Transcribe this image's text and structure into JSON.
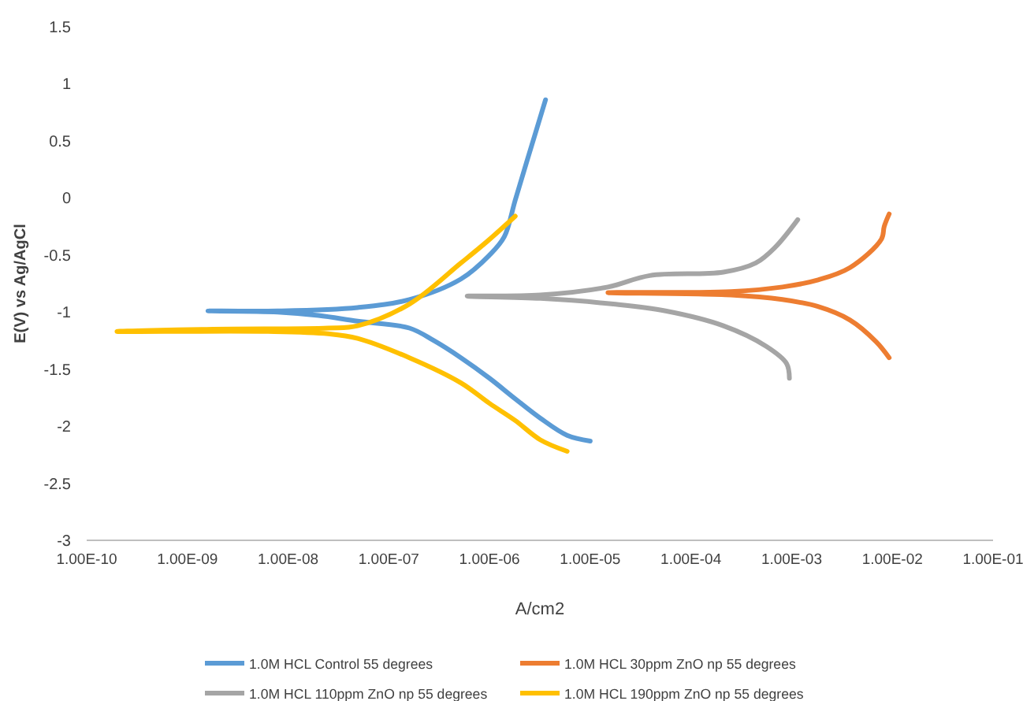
{
  "chart_data": {
    "type": "line",
    "xlabel": "A/cm2",
    "ylabel": "E(V) vs Ag/AgCl",
    "log": "x",
    "legend": "bottom",
    "xlim": [
      1e-10,
      0.1
    ],
    "ylim": [
      -3,
      1.5
    ],
    "xticks": [
      {
        "value": 1e-10,
        "label": "1.00E-10"
      },
      {
        "value": 1e-09,
        "label": "1.00E-09"
      },
      {
        "value": 1e-08,
        "label": "1.00E-08"
      },
      {
        "value": 1e-07,
        "label": "1.00E-07"
      },
      {
        "value": 1e-06,
        "label": "1.00E-06"
      },
      {
        "value": 1e-05,
        "label": "1.00E-05"
      },
      {
        "value": 0.0001,
        "label": "1.00E-04"
      },
      {
        "value": 0.001,
        "label": "1.00E-03"
      },
      {
        "value": 0.01,
        "label": "1.00E-02"
      },
      {
        "value": 0.1,
        "label": "1.00E-01"
      }
    ],
    "yticks": [
      -3,
      -2.5,
      -2,
      -1.5,
      -1,
      -0.5,
      0,
      0.5,
      1,
      1.5
    ],
    "series": [
      {
        "name": "1.0M HCL Control 55 degrees",
        "color": "#5b9bd5",
        "x": [
          1e-05,
          5.9e-06,
          3.2e-06,
          1.8e-06,
          1e-06,
          5.2e-07,
          2.8e-07,
          1.6e-07,
          4.9e-08,
          2e-08,
          7.9e-09,
          1.6e-09,
          7.9e-09,
          4.9e-08,
          1.6e-07,
          5.2e-07,
          1e-06,
          1.4e-06,
          1.8e-06,
          2.5e-06,
          3.6e-06
        ],
        "values": [
          -2.13,
          -2.08,
          -1.93,
          -1.76,
          -1.58,
          -1.4,
          -1.25,
          -1.14,
          -1.08,
          -1.03,
          -1.0,
          -0.99,
          -0.99,
          -0.96,
          -0.89,
          -0.71,
          -0.5,
          -0.34,
          -0.02,
          0.4,
          0.86
        ]
      },
      {
        "name": "1.0M HCL 30ppm ZnO np 55 degrees",
        "color": "#ed7d31",
        "x": [
          0.0093,
          0.0069,
          0.0038,
          0.0018,
          0.00081,
          0.00025,
          1.5e-05,
          0.00025,
          0.00081,
          0.0018,
          0.0038,
          0.0078,
          0.0083,
          0.0093
        ],
        "values": [
          -1.4,
          -1.26,
          -1.07,
          -0.95,
          -0.89,
          -0.85,
          -0.83,
          -0.82,
          -0.78,
          -0.72,
          -0.61,
          -0.36,
          -0.25,
          -0.14
        ]
      },
      {
        "name": "1.0M HCL 110ppm ZnO np 55 degrees",
        "color": "#a5a5a5",
        "x": [
          0.00095,
          0.00089,
          0.00056,
          0.00021,
          5.6e-05,
          1.7e-05,
          3.2e-06,
          6e-07,
          3.2e-06,
          1.5e-05,
          3.9e-05,
          0.00021,
          0.00044,
          0.00069,
          0.00115
        ],
        "values": [
          -1.58,
          -1.45,
          -1.3,
          -1.12,
          -0.99,
          -0.93,
          -0.88,
          -0.86,
          -0.85,
          -0.78,
          -0.68,
          -0.65,
          -0.57,
          -0.43,
          -0.19
        ]
      },
      {
        "name": "1.0M HCL 190ppm ZnO np 55 degrees",
        "color": "#ffc000",
        "x": [
          5.9e-06,
          3.2e-06,
          1.8e-06,
          1e-06,
          5.2e-07,
          1.6e-07,
          4.9e-08,
          2.5e-08,
          6.3e-09,
          2e-10,
          1.8e-09,
          2.5e-08,
          4.9e-08,
          1.6e-07,
          5.2e-07,
          9.5e-07,
          1.8e-06
        ],
        "values": [
          -2.22,
          -2.12,
          -1.95,
          -1.8,
          -1.62,
          -1.4,
          -1.23,
          -1.19,
          -1.17,
          -1.17,
          -1.15,
          -1.14,
          -1.12,
          -0.93,
          -0.57,
          -0.38,
          -0.16
        ]
      }
    ]
  }
}
